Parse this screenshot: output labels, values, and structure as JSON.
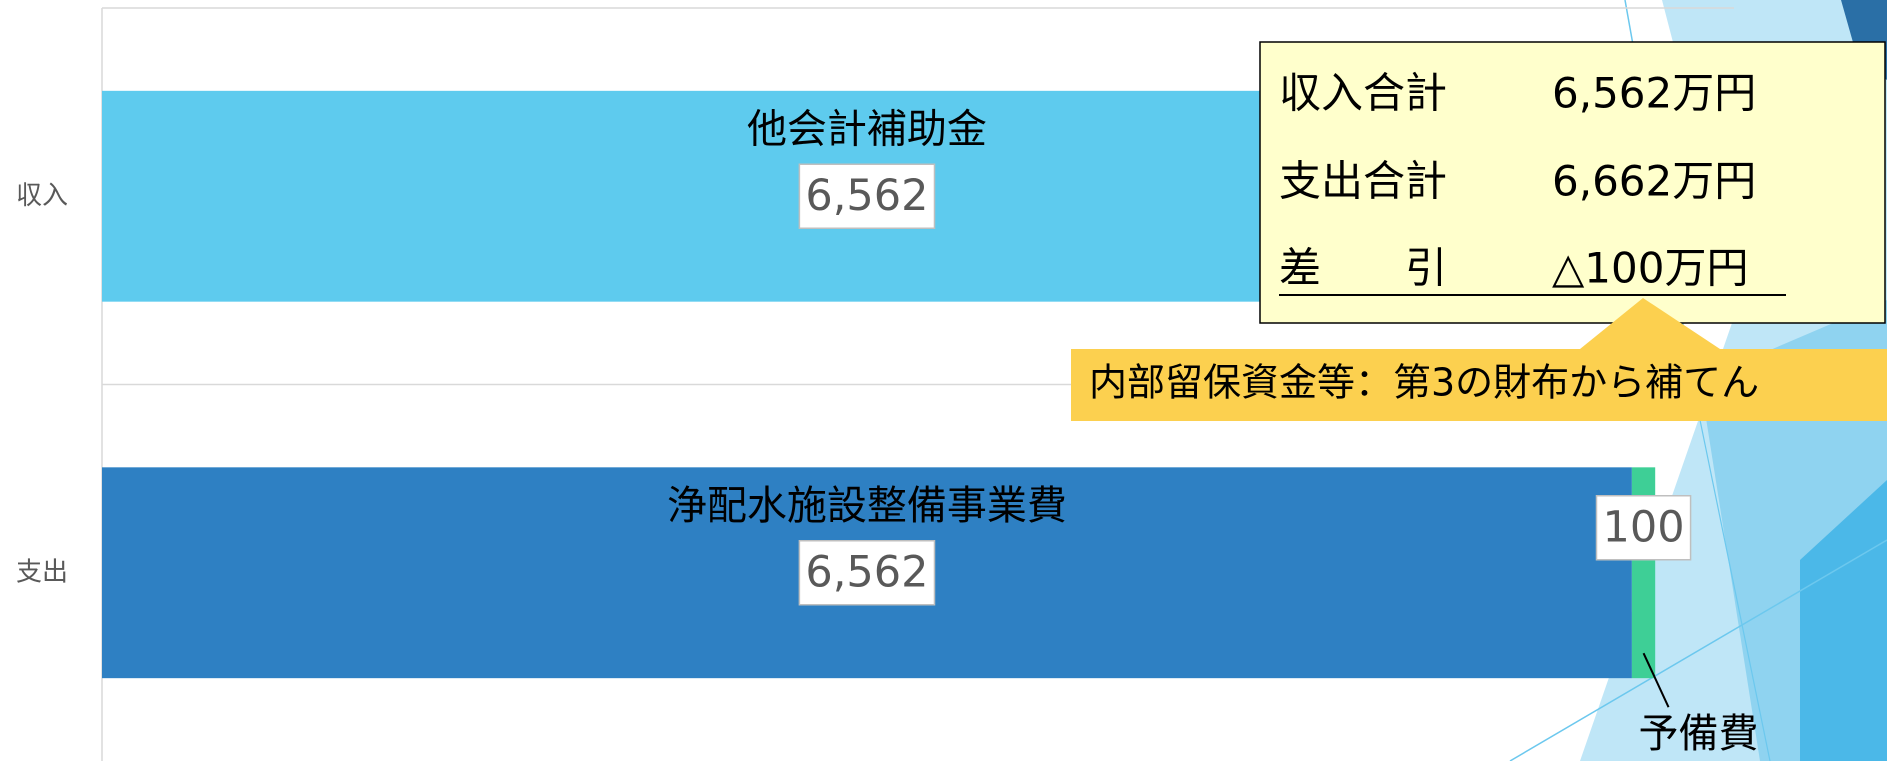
{
  "chart_data": {
    "type": "stacked-bar-horizontal",
    "categories": [
      "収入",
      "支出"
    ],
    "series": [
      {
        "name": "他会計補助金",
        "color": "#5ecbee",
        "values": [
          6562,
          null
        ],
        "value_labels": [
          "6,562",
          null
        ]
      },
      {
        "name": "浄配水施設整備事業費",
        "color": "#2e80c3",
        "values": [
          null,
          6562
        ],
        "value_labels": [
          null,
          "6,562"
        ]
      },
      {
        "name": "予備費",
        "color": "#3ecf96",
        "values": [
          null,
          100
        ],
        "value_labels": [
          null,
          "100"
        ]
      }
    ],
    "xlim": [
      0,
      7000
    ],
    "summary": {
      "rows": [
        [
          "収入合計",
          "6,562万円"
        ],
        [
          "支出合計",
          "6,662万円"
        ],
        [
          "差　　引",
          "△100万円"
        ]
      ]
    },
    "callout": "内部留保資金等：第3の財布から補てん"
  }
}
